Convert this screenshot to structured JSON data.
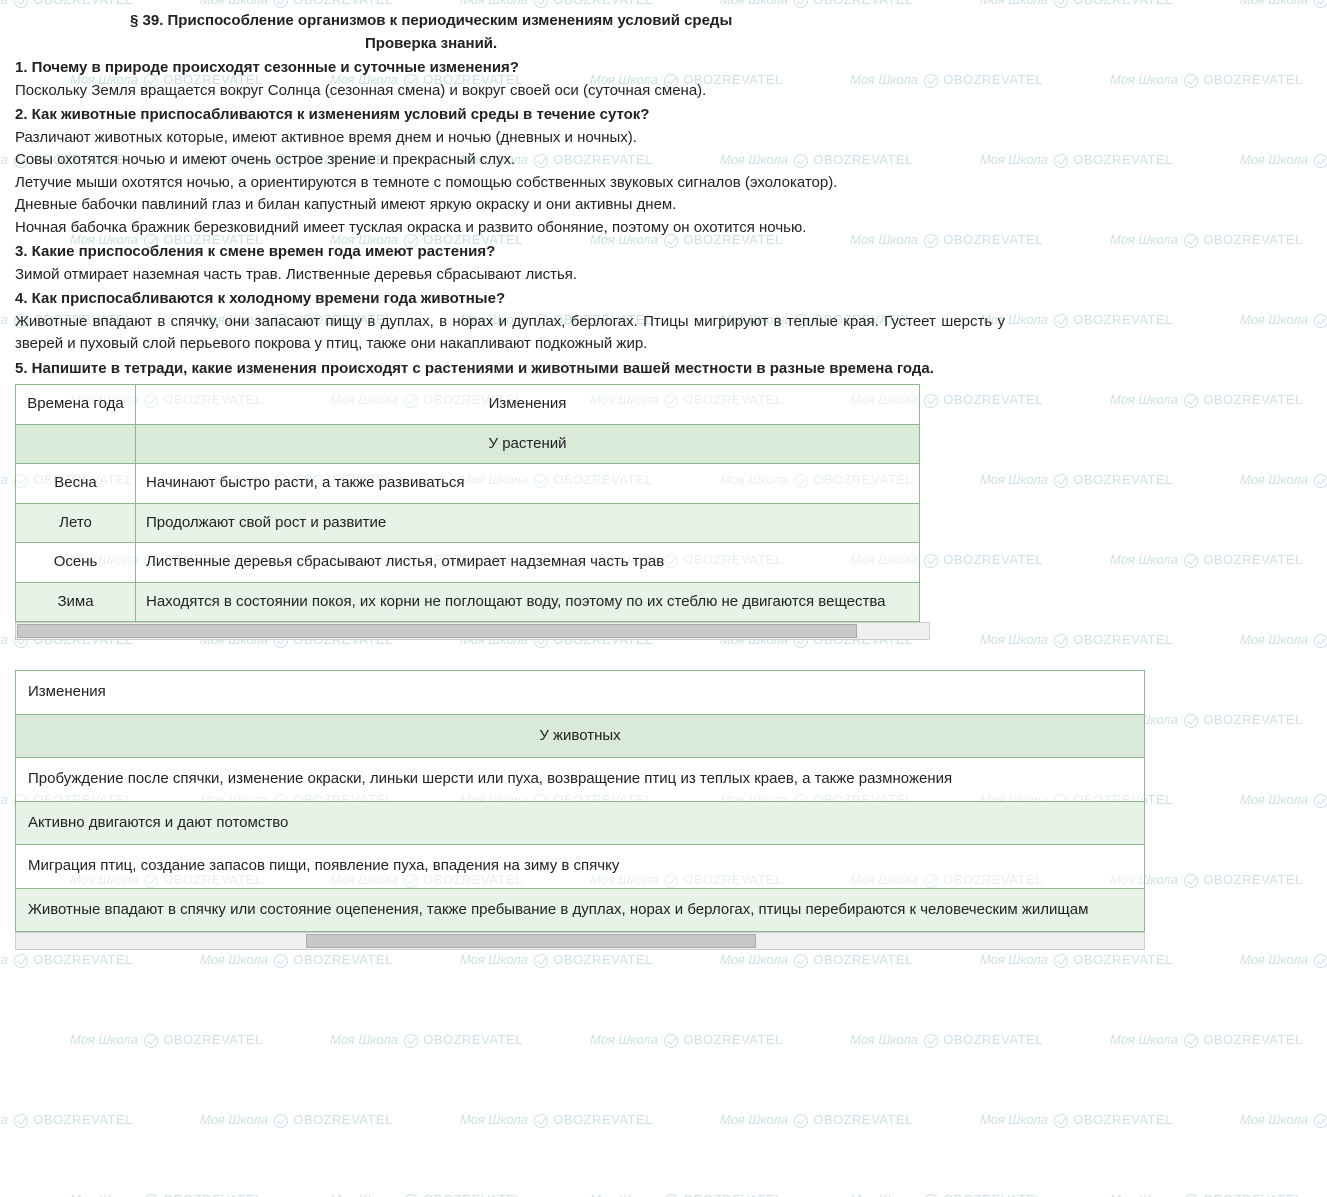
{
  "watermark": {
    "text1": "Моя Школа",
    "text2": "OBOZREVATEL",
    "color": "#b8d4dc"
  },
  "header": {
    "title": "§ 39. Приспособление организмов к периодическим изменениям условий среды",
    "subtitle": "Проверка знаний."
  },
  "qa": [
    {
      "q": "1. Почему в природе происходят сезонные и суточные изменения?",
      "a": [
        "Поскольку Земля вращается вокруг Солнца (сезонная смена) и вокруг своей оси (суточная смена)."
      ]
    },
    {
      "q": "2. Как животные приспосабливаются к изменениям условий среды в течение суток?",
      "a": [
        "Различают животных которые, имеют активное время днем и ночью (дневных и ночных).",
        "Совы охотятся ночью и имеют очень острое зрение и прекрасный слух.",
        "Летучие мыши охотятся ночью, а ориентируются в темноте с помощью собственных звуковых сигналов (эхолокатор).",
        "Дневные бабочки павлиний глаз и билан капустный имеют яркую окраску и они активны днем.",
        "Ночная бабочка бражник березковидний имеет тусклая окраска и развито обоняние, поэтому он охотится ночью."
      ]
    },
    {
      "q": "3. Какие приспособления к смене времен года имеют растения?",
      "a": [
        "Зимой отмирает наземная часть трав. Лиственные деревья сбрасывают листья."
      ]
    },
    {
      "q": "4. Как приспосабливаются к холодному времени года животные?",
      "a": [
        "Животные впадают в спячку, они запасают пищу в дуплах, в норах и дуплах, берлогах. Птицы мигрируют в теплые края. Густеет шерсть у зверей и пуховый слой перьевого покрова у птиц, также они накапливают подкожный жир."
      ]
    },
    {
      "q": "5. Напишите в тетради, какие изменения происходят с растениями и животными вашей местности в разные времена года.",
      "a": []
    }
  ],
  "table1": {
    "headers": [
      "Времена года",
      "Изменения"
    ],
    "section": "У растений",
    "rows": [
      {
        "season": "Весна",
        "text": "Начинают быстро расти, а также развиваться"
      },
      {
        "season": "Лето",
        "text": "Продолжают свой рост и развитие"
      },
      {
        "season": "Осень",
        "text": "Лиственные деревья сбрасывают листья, отмирает надземная часть трав"
      },
      {
        "season": "Зима",
        "text": "Находятся в состоянии покоя, их корни не поглощают воду, поэтому по их стеблю не двигаются вещества"
      }
    ],
    "border_color": "#8fb88f",
    "section_bg": "#d9ead9"
  },
  "table2": {
    "header": "Изменения",
    "section": "У животных",
    "rows": [
      "Пробуждение после спячки, изменение окраски, линьки шерсти или пуха, возвращение птиц из теплых краев, а также размножения",
      "Активно двигаются и дают потомство",
      "Миграция птиц, создание запасов пищи, появление пуха, впадения на зиму в спячку",
      "Животные впадают в спячку или состояние оцепенения, также пребывание в дуплах, норах и берлогах, птицы перебираются к человеческим жилищам"
    ]
  },
  "scrollbar": {
    "bg": "#f0f0f0",
    "thumb": "#c8c8c8"
  }
}
